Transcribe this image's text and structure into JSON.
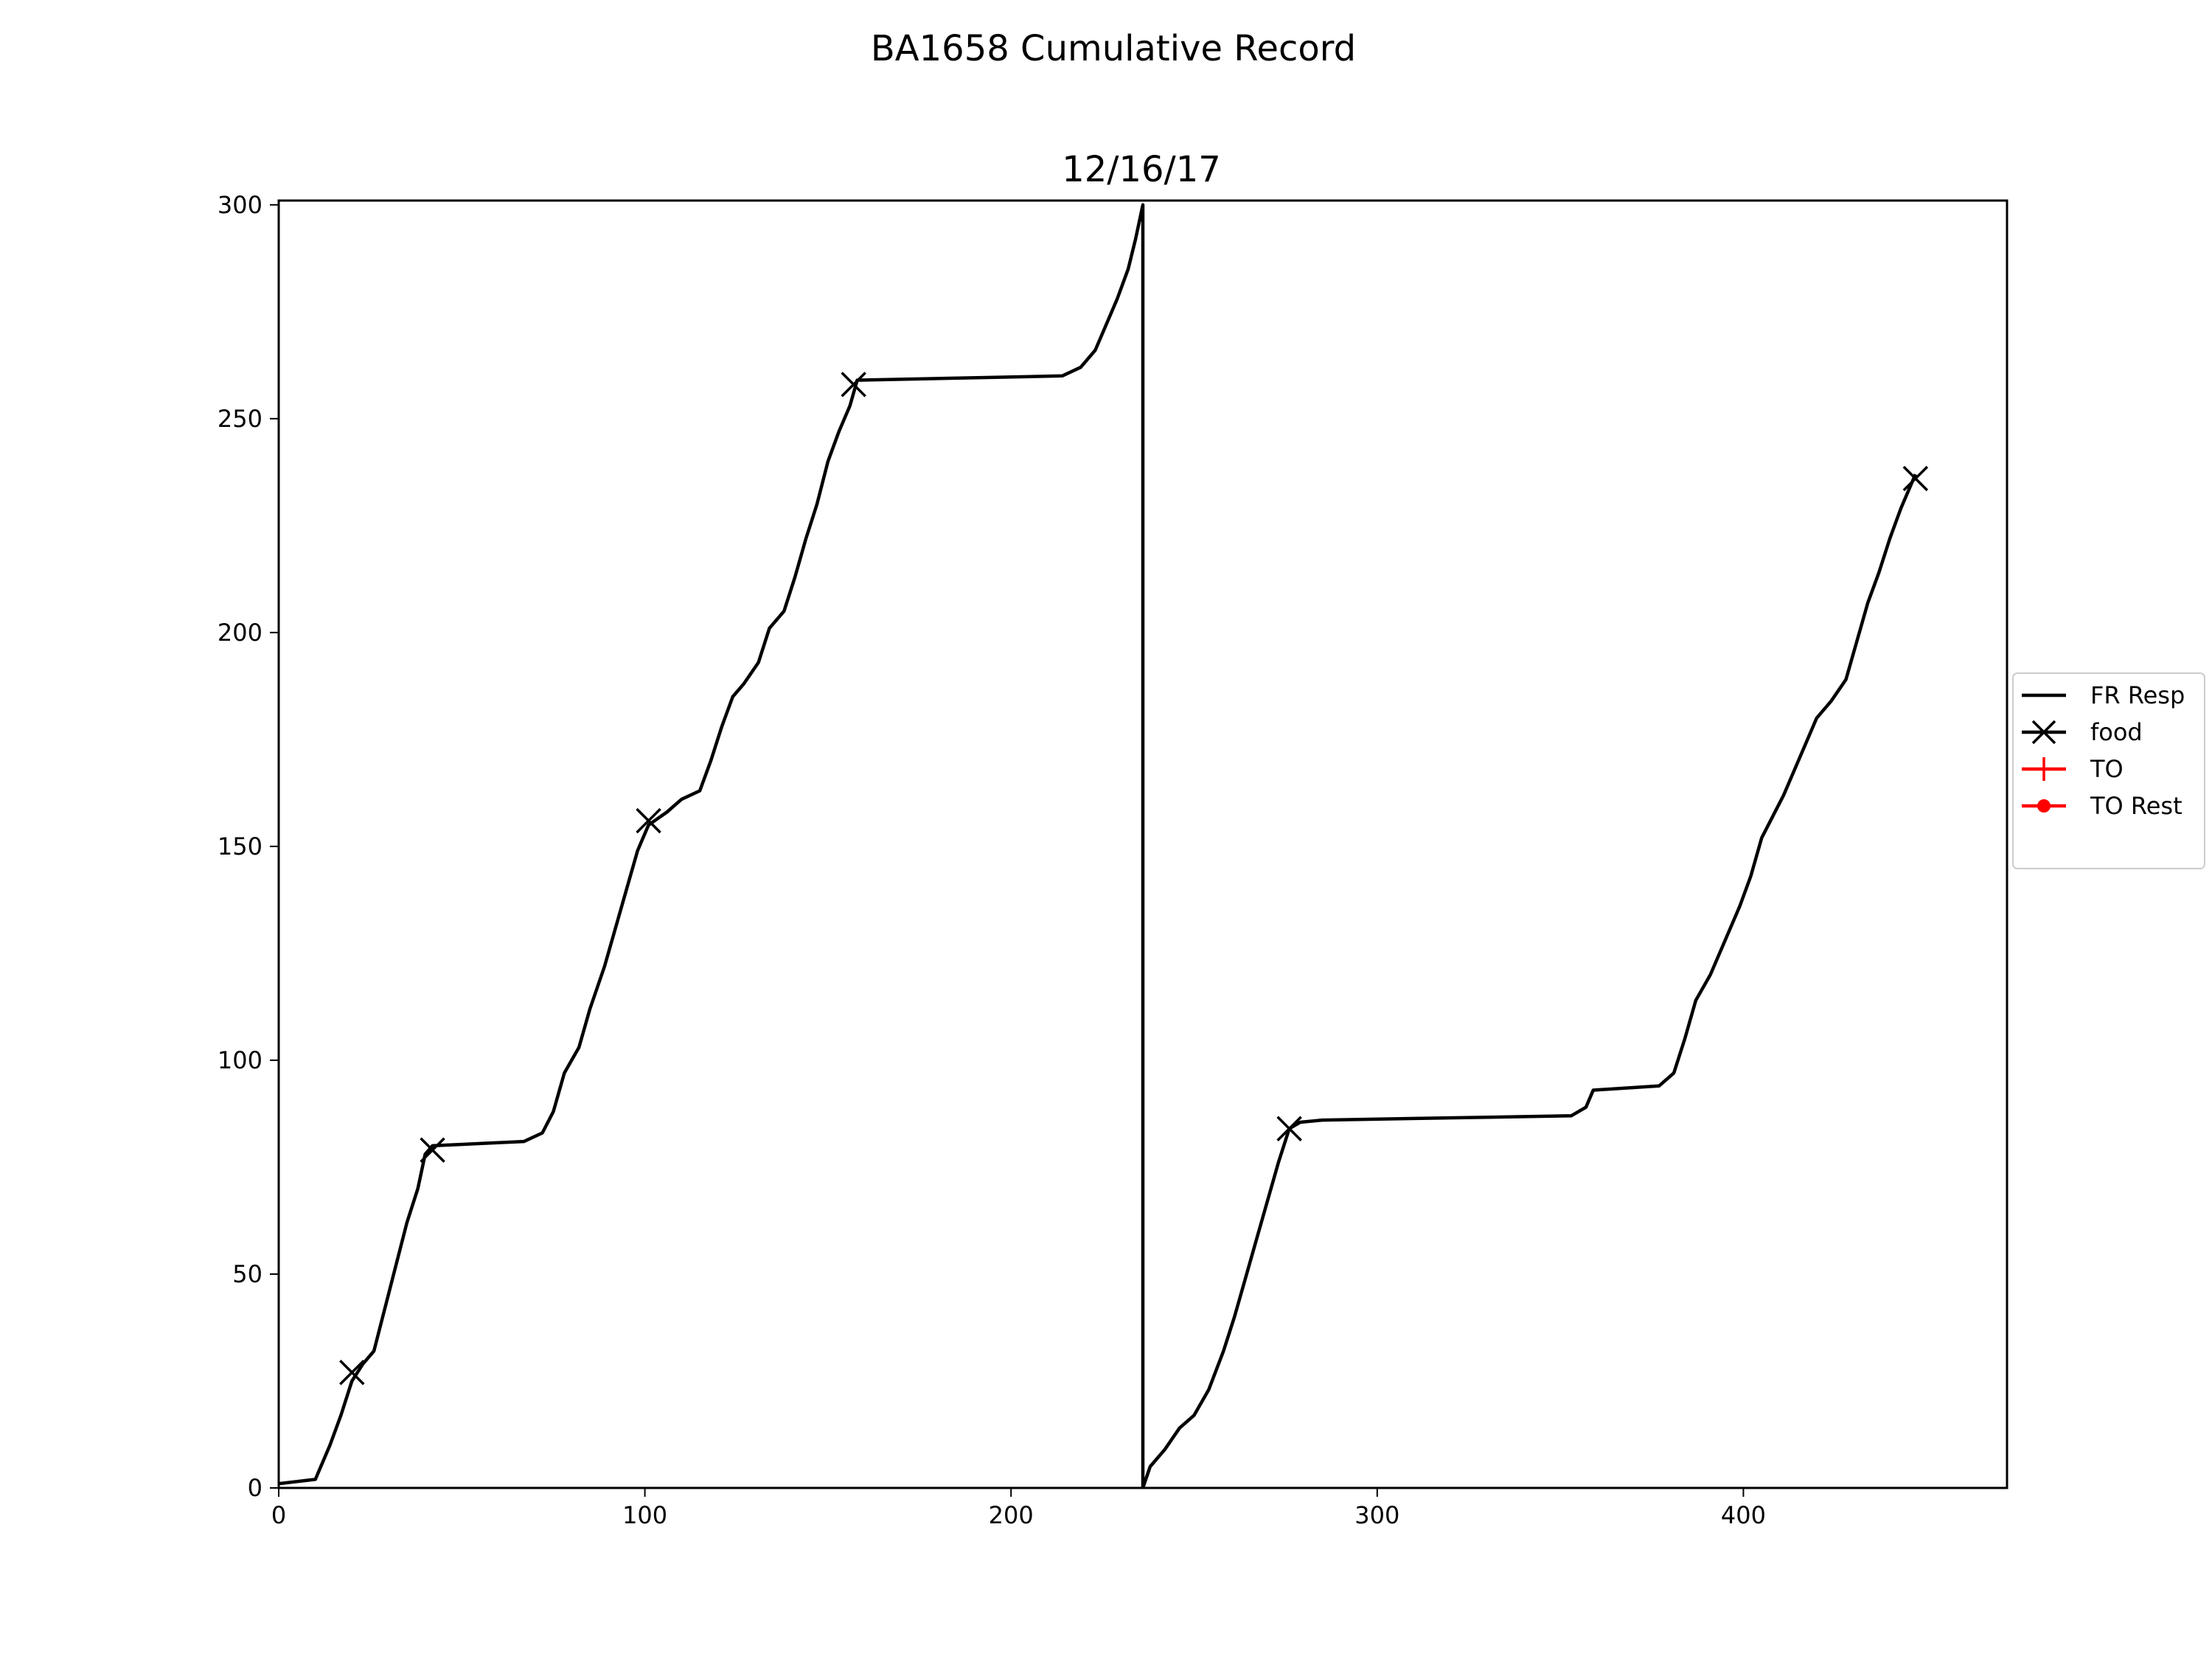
{
  "chart_data": {
    "type": "line",
    "suptitle": "BA1658 Cumulative Record",
    "title": "12/16/17",
    "xlabel": "",
    "ylabel": "",
    "xlim": [
      0,
      472
    ],
    "ylim": [
      0,
      301
    ],
    "x_ticks": [
      0,
      100,
      200,
      300,
      400
    ],
    "y_ticks": [
      0,
      50,
      100,
      150,
      200,
      250,
      300
    ],
    "legend_position": "center-right",
    "colors": {
      "line": "#000000",
      "to": "#ff0000",
      "frame": "#000000"
    },
    "legend": [
      {
        "label": "FR Resp",
        "marker": "none",
        "color": "#000000"
      },
      {
        "label": "food",
        "marker": "x",
        "color": "#000000"
      },
      {
        "label": "TO",
        "marker": "plus",
        "color": "#ff0000"
      },
      {
        "label": "TO Rest",
        "marker": "dot",
        "color": "#ff0000"
      }
    ],
    "series": [
      {
        "name": "FR Resp",
        "points": [
          [
            0,
            1
          ],
          [
            10,
            2
          ],
          [
            14,
            10
          ],
          [
            17,
            17
          ],
          [
            20,
            25
          ],
          [
            23,
            29
          ],
          [
            26,
            32
          ],
          [
            29,
            42
          ],
          [
            32,
            52
          ],
          [
            35,
            62
          ],
          [
            38,
            70
          ],
          [
            40,
            78
          ],
          [
            42,
            80
          ],
          [
            67,
            81
          ],
          [
            72,
            83
          ],
          [
            75,
            88
          ],
          [
            78,
            97
          ],
          [
            82,
            103
          ],
          [
            85,
            112
          ],
          [
            89,
            122
          ],
          [
            92,
            131
          ],
          [
            95,
            140
          ],
          [
            98,
            149
          ],
          [
            101,
            155
          ],
          [
            106,
            158
          ],
          [
            110,
            161
          ],
          [
            115,
            163
          ],
          [
            118,
            170
          ],
          [
            121,
            178
          ],
          [
            124,
            185
          ],
          [
            127,
            188
          ],
          [
            131,
            193
          ],
          [
            134,
            201
          ],
          [
            138,
            205
          ],
          [
            141,
            213
          ],
          [
            144,
            222
          ],
          [
            147,
            230
          ],
          [
            150,
            240
          ],
          [
            153,
            247
          ],
          [
            156,
            253
          ],
          [
            158,
            259
          ],
          [
            214,
            260
          ],
          [
            219,
            262
          ],
          [
            223,
            266
          ],
          [
            226,
            272
          ],
          [
            229,
            278
          ],
          [
            232,
            285
          ],
          [
            234,
            292
          ],
          [
            236,
            300
          ],
          [
            236,
            0
          ],
          [
            238,
            5
          ],
          [
            242,
            9
          ],
          [
            246,
            14
          ],
          [
            250,
            17
          ],
          [
            254,
            23
          ],
          [
            258,
            32
          ],
          [
            261,
            40
          ],
          [
            264,
            49
          ],
          [
            267,
            58
          ],
          [
            270,
            67
          ],
          [
            273,
            76
          ],
          [
            276,
            84
          ],
          [
            279,
            85.5
          ],
          [
            285,
            86
          ],
          [
            353,
            87
          ],
          [
            357,
            89
          ],
          [
            359,
            93
          ],
          [
            377,
            94
          ],
          [
            381,
            97
          ],
          [
            384,
            105
          ],
          [
            387,
            114
          ],
          [
            391,
            120
          ],
          [
            395,
            128
          ],
          [
            399,
            136
          ],
          [
            402,
            143
          ],
          [
            405,
            152
          ],
          [
            408,
            157
          ],
          [
            411,
            162
          ],
          [
            414,
            168
          ],
          [
            417,
            174
          ],
          [
            420,
            180
          ],
          [
            424,
            184
          ],
          [
            428,
            189
          ],
          [
            431,
            198
          ],
          [
            434,
            207
          ],
          [
            437,
            214
          ],
          [
            440,
            222
          ],
          [
            443,
            229
          ],
          [
            447,
            237
          ]
        ]
      },
      {
        "name": "food",
        "points": [
          [
            20,
            27
          ],
          [
            42,
            79
          ],
          [
            101,
            156
          ],
          [
            157,
            258
          ],
          [
            276,
            84
          ],
          [
            447,
            236
          ]
        ]
      }
    ]
  }
}
